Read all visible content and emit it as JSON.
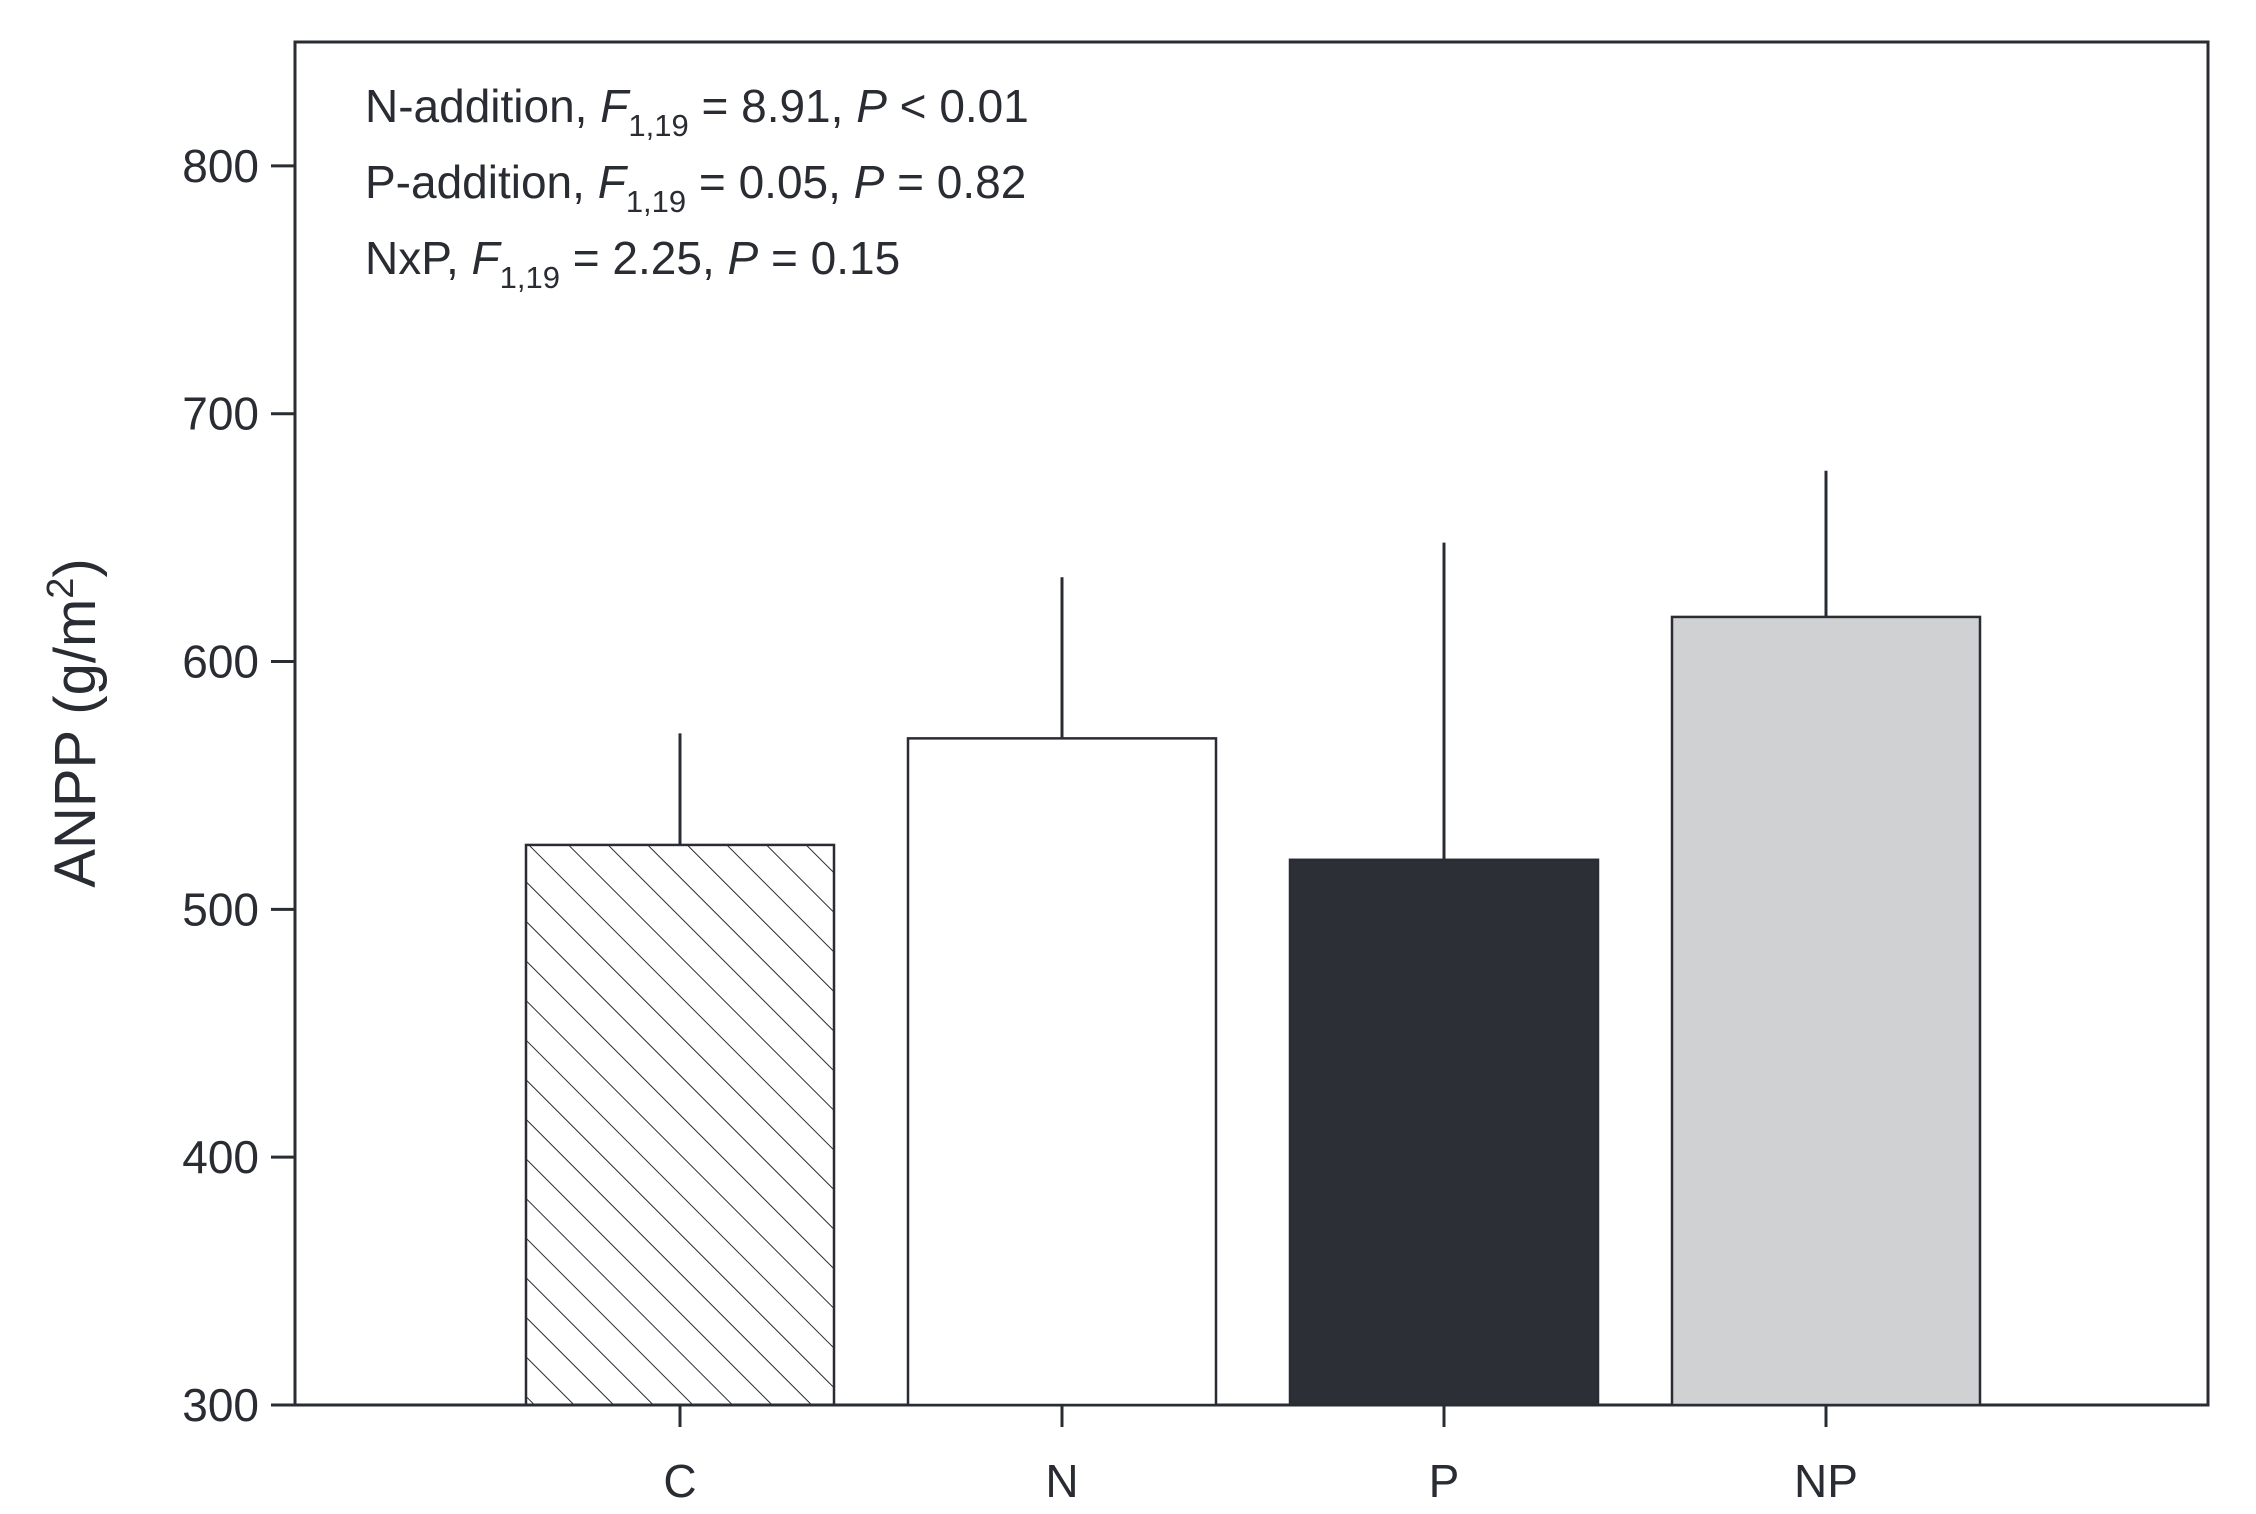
{
  "chart_data": {
    "type": "bar",
    "categories": [
      "C",
      "N",
      "P",
      "NP"
    ],
    "values": [
      526,
      569,
      520,
      618
    ],
    "error_upper": [
      571,
      634,
      648,
      677
    ],
    "ylabel": "ANPP (g/m",
    "ylabel_sup": "2",
    "ylabel_close": ")",
    "xlabel": "",
    "ylim": [
      300,
      850
    ],
    "yticks": [
      300,
      400,
      500,
      600,
      700,
      800
    ],
    "grid": false,
    "bar_fills": [
      "hatch",
      "#ffffff",
      "#2d2f37",
      "#d0d1d3"
    ],
    "annotations": [
      {
        "prefix": "N-addition, ",
        "stat": "F",
        "sub": "1,19",
        "mid": " = 8.91, ",
        "p": "P",
        "end": " < 0.01"
      },
      {
        "prefix": "P-addition, ",
        "stat": "F",
        "sub": "1,19",
        "mid": " = 0.05, ",
        "p": "P",
        "end": " = 0.82"
      },
      {
        "prefix": "NxP, ",
        "stat": "F",
        "sub": "1,19",
        "mid": " = 2.25, ",
        "p": "P",
        "end": " = 0.15"
      }
    ]
  }
}
